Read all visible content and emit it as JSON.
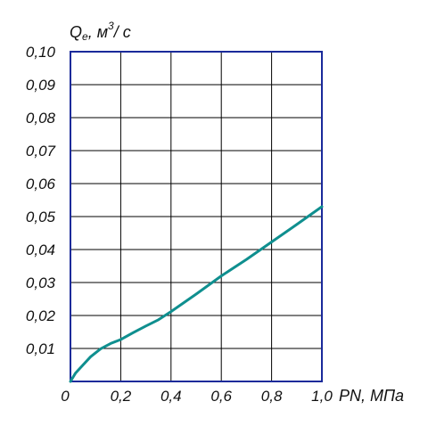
{
  "chart_data": {
    "type": "line",
    "title": "",
    "ylabel": {
      "symbol": "Q",
      "subscript": "e",
      "unit_before": ", м",
      "superscript": "3",
      "unit_after": "/ с"
    },
    "xlabel": "PN, МПа",
    "xlim": [
      0,
      1.0
    ],
    "ylim": [
      0,
      0.1
    ],
    "x_ticks": [
      0,
      0.2,
      0.4,
      0.6,
      0.8,
      1.0
    ],
    "x_tick_labels": [
      "0",
      "0,2",
      "0,4",
      "0,6",
      "0,8",
      "1,0"
    ],
    "y_ticks": [
      0.01,
      0.02,
      0.03,
      0.04,
      0.05,
      0.06,
      0.07,
      0.08,
      0.09,
      0.1
    ],
    "y_tick_labels": [
      "0,01",
      "0,02",
      "0,03",
      "0,04",
      "0,05",
      "0,06",
      "0,07",
      "0,08",
      "0,09",
      "0,10"
    ],
    "grid": true,
    "legend": "none",
    "colors": {
      "frame": "#1a2a9a",
      "grid": "#000000",
      "series": "#0f8f8f"
    },
    "series": [
      {
        "x": [
          0,
          0.02,
          0.05,
          0.08,
          0.12,
          0.16,
          0.2,
          0.25,
          0.3,
          0.35,
          0.4,
          0.5,
          0.6,
          0.7,
          0.8,
          0.9,
          1.0
        ],
        "y": [
          0,
          0.0025,
          0.005,
          0.0075,
          0.0099,
          0.0115,
          0.0127,
          0.0148,
          0.0168,
          0.0187,
          0.0212,
          0.0265,
          0.032,
          0.037,
          0.0423,
          0.0476,
          0.053
        ]
      }
    ]
  }
}
